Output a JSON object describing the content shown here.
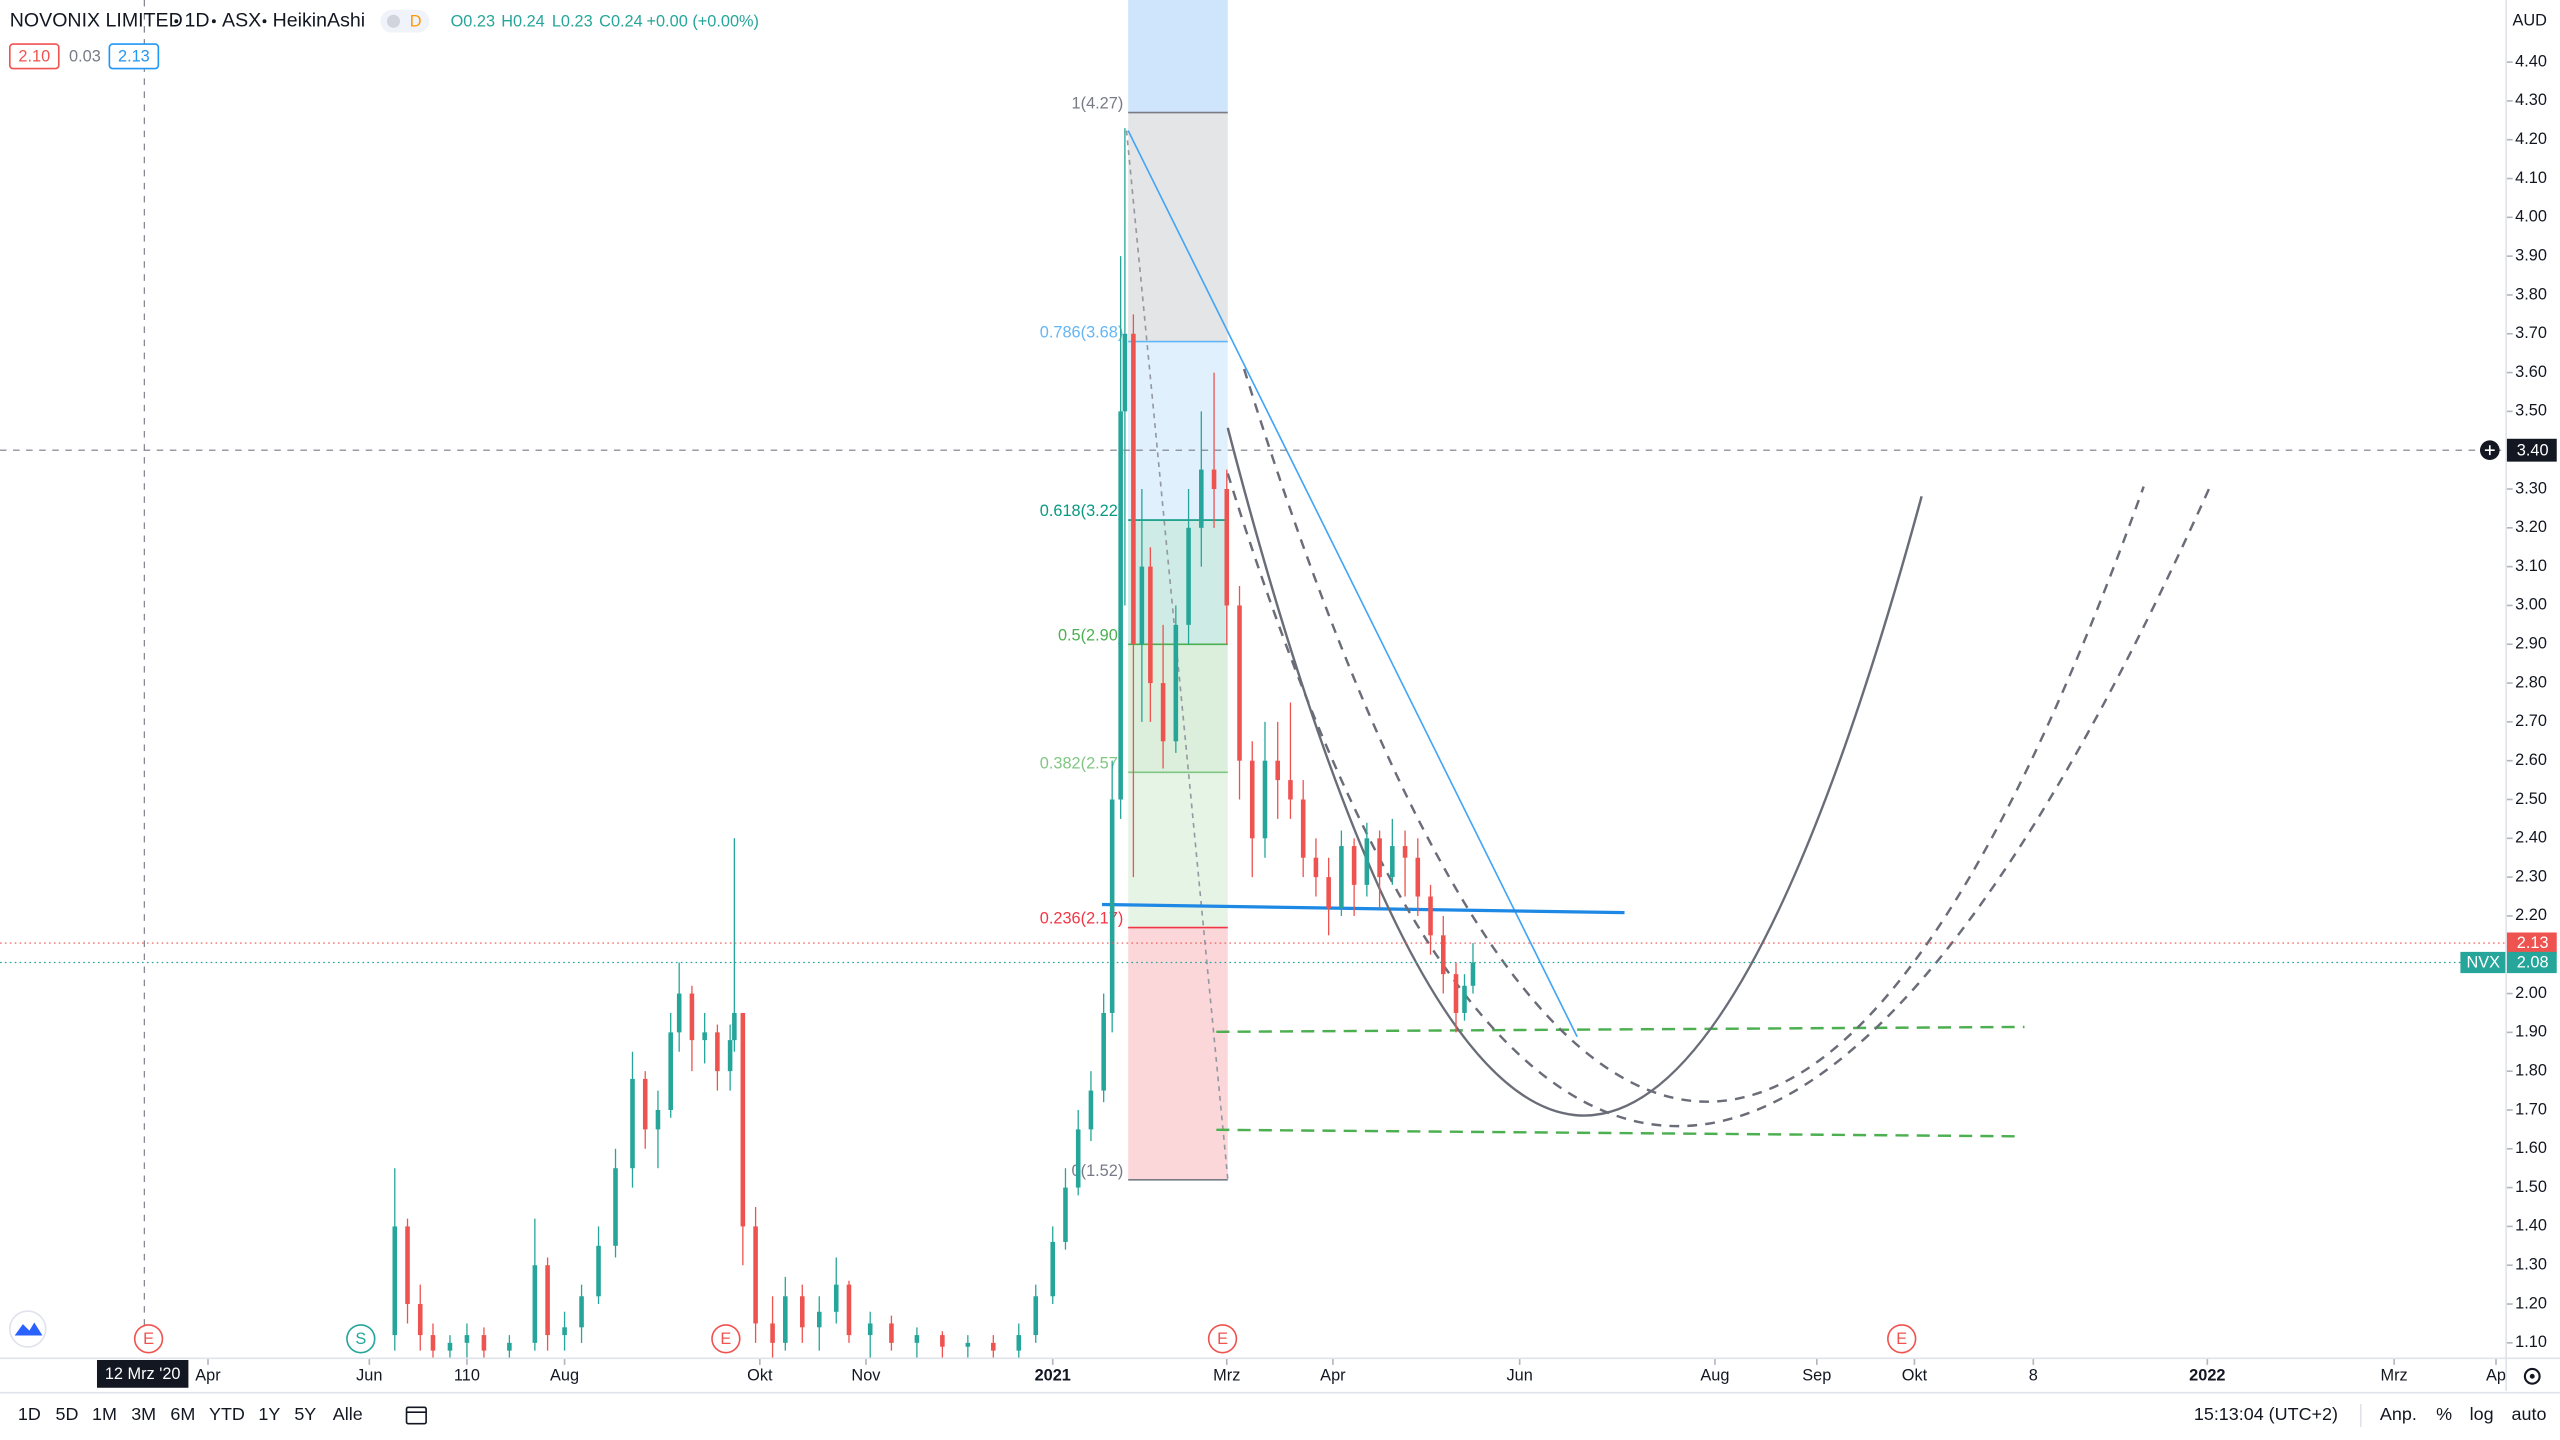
{
  "ui": {
    "symbol": "NOVONIX LIMITED",
    "interval": "1D",
    "exchange": "ASX",
    "style": "HeikinAshi",
    "badge": "D",
    "ohlc": [
      "O0.23",
      "H0.24",
      "L0.23",
      "C0.24",
      "+0.00 (+0.00%)"
    ],
    "bid": "2.10",
    "spread": "0.03",
    "ask": "2.13",
    "currency": "AUD",
    "ranges": [
      "1D",
      "5D",
      "1M",
      "3M",
      "6M",
      "YTD",
      "1Y",
      "5Y",
      "Alle"
    ],
    "clock": "15:13:04 (UTC+2)",
    "scale_options": [
      "Anp.",
      "%",
      "log",
      "auto"
    ]
  },
  "chart_data": {
    "type": "candlestick",
    "up_color": "#26a69a",
    "down_color": "#ef5350",
    "grid": false,
    "x": [
      93,
      96,
      99,
      102,
      106,
      110,
      114,
      120,
      126,
      129,
      133,
      137,
      141,
      145,
      149,
      152,
      155,
      158,
      160,
      163,
      166,
      169,
      172,
      173,
      175,
      178,
      182,
      185,
      189,
      193,
      197,
      200,
      205,
      210,
      216,
      222,
      228,
      234,
      240,
      244,
      248,
      251,
      254,
      257,
      260,
      262,
      264,
      265,
      267,
      269,
      271,
      274,
      277,
      280,
      283,
      286,
      289,
      292,
      295,
      298,
      301,
      304,
      307,
      310,
      313,
      316,
      319,
      322,
      325,
      328,
      331,
      334,
      337,
      340,
      343,
      345,
      347
    ],
    "open": [
      1.12,
      1.4,
      1.2,
      1.12,
      1.08,
      1.1,
      1.12,
      1.08,
      1.1,
      1.3,
      1.12,
      1.14,
      1.22,
      1.35,
      1.55,
      1.78,
      1.65,
      1.7,
      1.9,
      2.0,
      1.88,
      1.9,
      1.8,
      1.88,
      1.95,
      1.4,
      1.15,
      1.1,
      1.22,
      1.14,
      1.18,
      1.25,
      1.12,
      1.15,
      1.1,
      1.12,
      1.09,
      1.1,
      1.08,
      1.12,
      1.22,
      1.36,
      1.5,
      1.65,
      1.75,
      1.95,
      2.5,
      3.5,
      3.7,
      2.9,
      3.1,
      2.8,
      2.65,
      2.95,
      3.2,
      3.35,
      3.3,
      3.0,
      2.6,
      2.4,
      2.6,
      2.55,
      2.5,
      2.35,
      2.3,
      2.22,
      2.38,
      2.28,
      2.4,
      2.3,
      2.38,
      2.35,
      2.25,
      2.15,
      2.05,
      1.95,
      2.02
    ],
    "high": [
      1.55,
      1.42,
      1.25,
      1.15,
      1.12,
      1.15,
      1.14,
      1.12,
      1.42,
      1.32,
      1.18,
      1.25,
      1.4,
      1.6,
      1.85,
      1.8,
      1.75,
      1.95,
      2.08,
      2.02,
      1.95,
      1.92,
      1.92,
      2.4,
      1.95,
      1.45,
      1.22,
      1.27,
      1.25,
      1.22,
      1.32,
      1.26,
      1.18,
      1.17,
      1.14,
      1.13,
      1.12,
      1.12,
      1.15,
      1.25,
      1.4,
      1.55,
      1.7,
      1.8,
      2.0,
      2.6,
      3.9,
      4.23,
      3.75,
      3.3,
      3.15,
      2.95,
      3.0,
      3.3,
      3.5,
      3.6,
      3.35,
      3.05,
      2.65,
      2.7,
      2.7,
      2.75,
      2.55,
      2.4,
      2.35,
      2.42,
      2.4,
      2.44,
      2.42,
      2.45,
      2.42,
      2.4,
      2.28,
      2.2,
      2.08,
      2.05,
      2.13
    ],
    "low": [
      1.08,
      1.15,
      1.08,
      1.06,
      1.06,
      1.06,
      1.06,
      1.06,
      1.08,
      1.08,
      1.08,
      1.1,
      1.2,
      1.32,
      1.5,
      1.6,
      1.55,
      1.68,
      1.85,
      1.8,
      1.82,
      1.75,
      1.75,
      1.85,
      1.3,
      1.1,
      1.06,
      1.08,
      1.1,
      1.08,
      1.15,
      1.1,
      1.06,
      1.08,
      1.06,
      1.06,
      1.06,
      1.06,
      1.06,
      1.1,
      1.2,
      1.34,
      1.48,
      1.62,
      1.72,
      1.9,
      2.45,
      3.0,
      2.3,
      2.7,
      2.7,
      2.58,
      2.62,
      2.9,
      3.1,
      3.2,
      2.9,
      2.5,
      2.3,
      2.35,
      2.45,
      2.45,
      2.3,
      2.25,
      2.15,
      2.2,
      2.2,
      2.25,
      2.22,
      2.28,
      2.25,
      2.2,
      2.1,
      2.0,
      1.9,
      1.93,
      2.0
    ],
    "close": [
      1.4,
      1.2,
      1.12,
      1.08,
      1.1,
      1.12,
      1.08,
      1.1,
      1.3,
      1.12,
      1.14,
      1.22,
      1.35,
      1.55,
      1.78,
      1.65,
      1.7,
      1.9,
      2.0,
      1.88,
      1.9,
      1.8,
      1.88,
      1.95,
      1.4,
      1.15,
      1.1,
      1.22,
      1.14,
      1.18,
      1.25,
      1.12,
      1.15,
      1.1,
      1.12,
      1.09,
      1.1,
      1.08,
      1.12,
      1.22,
      1.36,
      1.5,
      1.65,
      1.75,
      1.95,
      2.5,
      3.5,
      3.7,
      2.9,
      3.1,
      2.8,
      2.65,
      2.95,
      3.2,
      3.35,
      3.3,
      3.0,
      2.6,
      2.4,
      2.6,
      2.55,
      2.5,
      2.35,
      2.3,
      2.22,
      2.38,
      2.28,
      2.4,
      2.3,
      2.38,
      2.35,
      2.25,
      2.15,
      2.05,
      1.95,
      2.02,
      2.08
    ],
    "xlim": [
      0,
      590
    ],
    "ylim": [
      1.06,
      4.56
    ],
    "xticks": [
      {
        "value": 49,
        "label": "Apr"
      },
      {
        "value": 87,
        "label": "Jun"
      },
      110,
      {
        "value": 133,
        "label": "Aug"
      },
      {
        "value": 179,
        "label": "Okt"
      },
      {
        "value": 204,
        "label": "Nov"
      },
      {
        "value": 248,
        "label": "2021"
      },
      {
        "value": 289,
        "label": "Mrz"
      },
      {
        "value": 314,
        "label": "Apr"
      },
      {
        "value": 358,
        "label": "Jun"
      },
      {
        "value": 404,
        "label": "Aug"
      },
      {
        "value": 428,
        "label": "Sep"
      },
      {
        "value": 451,
        "label": "Okt"
      },
      {
        "value": 479,
        "label": "8"
      },
      {
        "value": 520,
        "label": "2022"
      },
      {
        "value": 564,
        "label": "Mrz"
      },
      {
        "value": 588,
        "label": "Ap"
      }
    ],
    "yticks": [
      {
        "value": 4.4,
        "label": "4.40"
      },
      {
        "value": 4.3,
        "label": "4.30"
      },
      {
        "value": 4.2,
        "label": "4.20"
      },
      {
        "value": 4.1,
        "label": "4.10"
      },
      {
        "value": 4.0,
        "label": "4.00"
      },
      {
        "value": 3.9,
        "label": "3.90"
      },
      {
        "value": 3.8,
        "label": "3.80"
      },
      {
        "value": 3.7,
        "label": "3.70"
      },
      {
        "value": 3.6,
        "label": "3.60"
      },
      {
        "value": 3.5,
        "label": "3.50"
      },
      {
        "value": 3.3,
        "label": "3.30"
      },
      {
        "value": 3.2,
        "label": "3.20"
      },
      {
        "value": 3.1,
        "label": "3.10"
      },
      {
        "value": 3.0,
        "label": "3.00"
      },
      {
        "value": 2.9,
        "label": "2.90"
      },
      {
        "value": 2.8,
        "label": "2.80"
      },
      {
        "value": 2.7,
        "label": "2.70"
      },
      {
        "value": 2.6,
        "label": "2.60"
      },
      {
        "value": 2.5,
        "label": "2.50"
      },
      {
        "value": 2.4,
        "label": "2.40"
      },
      {
        "value": 2.3,
        "label": "2.30"
      },
      {
        "value": 2.2,
        "label": "2.20"
      },
      {
        "value": 2.0,
        "label": "2.00"
      },
      {
        "value": 1.9,
        "label": "1.90"
      },
      {
        "value": 1.8,
        "label": "1.80"
      },
      {
        "value": 1.7,
        "label": "1.70"
      },
      {
        "value": 1.6,
        "label": "1.60"
      },
      {
        "value": 1.5,
        "label": "1.50"
      },
      {
        "value": 1.4,
        "label": "1.40"
      },
      {
        "value": 1.3,
        "label": "1.30"
      },
      {
        "value": 1.2,
        "label": "1.20"
      },
      {
        "value": 1.1,
        "label": "1.10"
      }
    ],
    "fib_levels": [
      {
        "value": 4.27,
        "label": "1(4.27)",
        "color": "#787b86"
      },
      {
        "value": 3.68,
        "label": "0.786(3.68)",
        "color": "#64b5f6"
      },
      {
        "value": 3.22,
        "label": "0.618(3.22)",
        "color": "#089981"
      },
      {
        "value": 2.9,
        "label": "0.5(2.90)",
        "color": "#4caf50"
      },
      {
        "value": 2.57,
        "label": "0.382(2.57)",
        "color": "#81c784"
      },
      {
        "value": 2.17,
        "label": "0.236(2.17)",
        "color": "#f23645"
      },
      {
        "value": 1.52,
        "label": "0(1.52)",
        "color": "#787b86"
      }
    ],
    "crosshair": {
      "x": {
        "value": 34,
        "label": "12 Mrz '20"
      },
      "y": {
        "value": 3.4,
        "label": "3.40"
      }
    },
    "price_lines": [
      {
        "value": 2.13,
        "label": "2.13",
        "color": "#ef5350"
      },
      {
        "name": "NVX",
        "value": 2.08,
        "label": "2.08",
        "color": "#26a69a"
      }
    ],
    "events": [
      {
        "x": 35,
        "label": "E",
        "color": "#ef5350"
      },
      {
        "x": 85,
        "label": "S",
        "color": "#26a69a"
      },
      {
        "x": 171,
        "label": "E",
        "color": "#ef5350"
      },
      {
        "x": 288,
        "label": "E",
        "color": "#ef5350"
      },
      {
        "x": 448,
        "label": "E",
        "color": "#ef5350"
      }
    ]
  }
}
